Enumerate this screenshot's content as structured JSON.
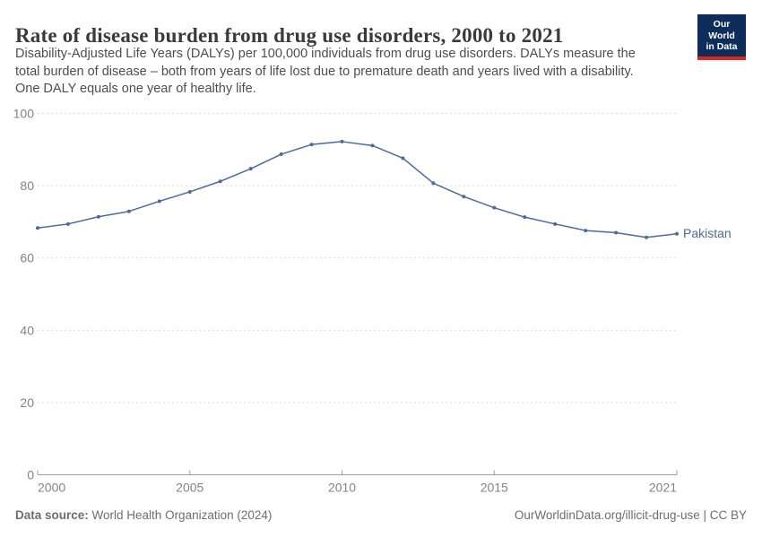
{
  "header": {
    "title": "Rate of disease burden from drug use disorders, 2000 to 2021",
    "subtitle_lines": [
      "Disability-Adjusted Life Years (DALYs) per 100,000 individuals from drug use disorders. DALYs measure the",
      "total burden of disease – both from years of life lost due to premature death and years lived with a disability.",
      "One DALY equals one year of healthy life."
    ],
    "logo": {
      "line1": "Our World",
      "line2": "in Data"
    }
  },
  "chart_data": {
    "type": "line",
    "title": "Rate of disease burden from drug use disorders, 2000 to 2021",
    "ylabel": "",
    "xlabel": "",
    "x": [
      2000,
      2001,
      2002,
      2003,
      2004,
      2005,
      2006,
      2007,
      2008,
      2009,
      2010,
      2011,
      2012,
      2013,
      2014,
      2015,
      2016,
      2017,
      2018,
      2019,
      2020,
      2021
    ],
    "series": [
      {
        "name": "Pakistan",
        "color": "#4C6A9C",
        "values": [
          68.3,
          69.4,
          71.4,
          72.9,
          75.7,
          78.3,
          81.2,
          84.7,
          88.7,
          91.4,
          92.2,
          91.1,
          87.6,
          80.7,
          77.0,
          73.9,
          71.3,
          69.4,
          67.6,
          67.0,
          65.7,
          66.7
        ]
      }
    ],
    "xlim": [
      2000,
      2021
    ],
    "ylim": [
      0,
      100
    ],
    "yticks": [
      0,
      20,
      40,
      60,
      80,
      100
    ],
    "xticks": [
      2000,
      2005,
      2010,
      2015,
      2021
    ],
    "grid": "horizontal-dashed",
    "legend_position": "end-of-line"
  },
  "footer": {
    "source_label": "Data source:",
    "source_text": " World Health Organization (2024)",
    "right_text": "OurWorldinData.org/illicit-drug-use | CC BY"
  },
  "colors": {
    "line": "#4C6A9C",
    "grid": "#dcdcdc",
    "axis": "#9e9e9e",
    "tick_text": "#848484",
    "title": "#3a3a3a",
    "subtitle": "#4e4e4e",
    "footer": "#6e6e6e",
    "logo_bg": "#0d2d5a",
    "logo_red": "#e0261c"
  }
}
